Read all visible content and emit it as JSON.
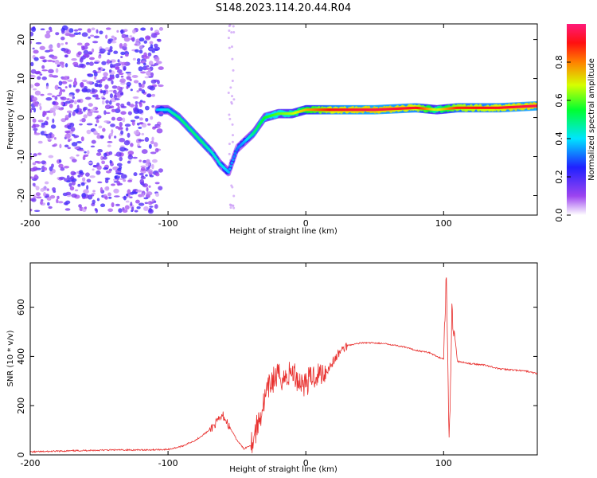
{
  "figure_title": "S148.2023.114.20.44.R04",
  "chart_data": [
    {
      "type": "heatmap",
      "title": "",
      "xlabel": "Height of straight line (km)",
      "ylabel": "Frequency (Hz)",
      "xlim": [
        -200,
        168
      ],
      "ylim": [
        -25,
        24
      ],
      "xticks": [
        -200,
        -100,
        0,
        100
      ],
      "yticks": [
        -20,
        -10,
        0,
        10,
        20
      ],
      "colorbar": {
        "label": "Normalized spectral amplitude",
        "range": [
          0,
          1
        ],
        "ticks": [
          "0.0",
          "0.2",
          "0.4",
          "0.6",
          "0.8"
        ],
        "colormap": [
          "#ffffff",
          "#9c44f0",
          "#2020ff",
          "#00e5ff",
          "#00ff30",
          "#d6ff00",
          "#ff8000",
          "#ff1010",
          "#ff1a7a"
        ]
      },
      "ridge": {
        "x": [
          -108,
          -100,
          -92,
          -84,
          -76,
          -68,
          -62,
          -56,
          -50,
          -44,
          -38,
          -30,
          -20,
          -10,
          0,
          20,
          50,
          80,
          95,
          110,
          140,
          168
        ],
        "y": [
          2,
          2,
          0,
          -3,
          -6,
          -9,
          -12,
          -14,
          -8,
          -6,
          -4,
          0,
          1,
          1,
          2,
          2,
          2,
          2.5,
          2,
          2.5,
          2.5,
          3
        ],
        "amplitude": [
          0.35,
          0.4,
          0.45,
          0.45,
          0.45,
          0.4,
          0.4,
          0.35,
          0.3,
          0.35,
          0.45,
          0.5,
          0.55,
          0.6,
          0.7,
          0.9,
          0.95,
          0.9,
          0.6,
          0.85,
          0.9,
          0.95
        ]
      },
      "noise_region": {
        "x_from": -200,
        "x_to": -105,
        "y_range": [
          -24,
          23
        ]
      }
    },
    {
      "type": "line",
      "title": "",
      "xlabel": "Height of straight line (km)",
      "ylabel": "SNR (10 * v/v)",
      "xlim": [
        -200,
        168
      ],
      "ylim": [
        0,
        780
      ],
      "xticks": [
        -200,
        -100,
        0,
        100
      ],
      "yticks": [
        0,
        200,
        400,
        600
      ],
      "color": "#e8302e",
      "x": [
        -200,
        -180,
        -160,
        -140,
        -120,
        -100,
        -90,
        -80,
        -70,
        -60,
        -50,
        -45,
        -40,
        -35,
        -30,
        -25,
        -20,
        -15,
        -10,
        -5,
        0,
        5,
        10,
        15,
        20,
        25,
        30,
        40,
        50,
        60,
        70,
        80,
        90,
        95,
        100,
        102,
        104,
        106,
        110,
        120,
        130,
        140,
        150,
        160,
        168
      ],
      "y": [
        12,
        15,
        18,
        20,
        20,
        22,
        35,
        60,
        100,
        160,
        60,
        25,
        40,
        120,
        220,
        300,
        320,
        310,
        340,
        300,
        290,
        320,
        330,
        340,
        380,
        420,
        445,
        455,
        455,
        450,
        440,
        425,
        415,
        400,
        390,
        720,
        30,
        600,
        380,
        370,
        365,
        350,
        345,
        340,
        330
      ]
    }
  ]
}
